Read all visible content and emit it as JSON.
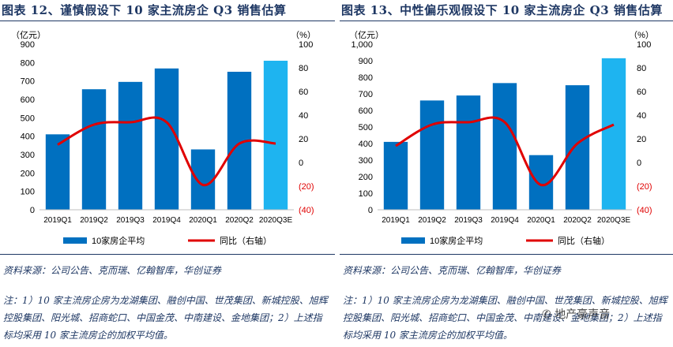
{
  "colors": {
    "bar": "#0070c0",
    "bar_estimate": "#1eb4f0",
    "line": "#e00000",
    "title": "#1f3864",
    "negative_tick": "#e00000"
  },
  "chart_data": [
    {
      "type": "bar",
      "title": "图表 12、谨慎假设下 10 家主流房企 Q3 销售估算",
      "categories": [
        "2019Q1",
        "2019Q2",
        "2019Q3",
        "2019Q4",
        "2020Q1",
        "2020Q2",
        "2020Q3E"
      ],
      "series": [
        {
          "name": "10家房企平均",
          "kind": "bar",
          "axis": "left",
          "values": [
            410,
            655,
            695,
            768,
            328,
            750,
            810
          ]
        },
        {
          "name": "同比（右轴）",
          "kind": "line",
          "axis": "right",
          "values": [
            15,
            32,
            34,
            34,
            -19,
            16,
            16
          ]
        }
      ],
      "ylabel": "（亿元）",
      "y2label": "（%）",
      "ylim": [
        0,
        900
      ],
      "y2lim": [
        -40,
        100
      ],
      "yticks": [
        "0",
        "100",
        "200",
        "300",
        "400",
        "500",
        "600",
        "700",
        "800",
        "900"
      ],
      "y2ticks": [
        "(40)",
        "(20)",
        "0",
        "20",
        "40",
        "60",
        "80",
        "100"
      ],
      "legend": {
        "bar": "10家房企平均",
        "line": "同比（右轴）"
      }
    },
    {
      "type": "bar",
      "title": "图表 13、中性偏乐观假设下 10 家主流房企 Q3 销售估算",
      "categories": [
        "2019Q1",
        "2019Q2",
        "2019Q3",
        "2019Q4",
        "2020Q1",
        "2020Q2",
        "2020Q3E"
      ],
      "series": [
        {
          "name": "10家房企平均",
          "kind": "bar",
          "axis": "left",
          "values": [
            410,
            660,
            690,
            765,
            330,
            752,
            915
          ]
        },
        {
          "name": "同比（右轴）",
          "kind": "line",
          "axis": "right",
          "values": [
            14,
            32,
            34,
            34,
            -19,
            16,
            32
          ]
        }
      ],
      "ylabel": "（亿元）",
      "y2label": "（%）",
      "ylim": [
        0,
        1000
      ],
      "y2lim": [
        -40,
        100
      ],
      "yticks": [
        "0",
        "100",
        "200",
        "300",
        "400",
        "500",
        "600",
        "700",
        "800",
        "900",
        "1,000"
      ],
      "y2ticks": [
        "(40)",
        "(20)",
        "0",
        "20",
        "40",
        "60",
        "80",
        "100"
      ],
      "legend": {
        "bar": "10家房企平均",
        "line": "同比（右轴）"
      }
    }
  ],
  "left": {
    "source": "资料来源：公司公告、克而瑞、亿翰智库，华创证券",
    "note": "注：1）10 家主流房企房为龙湖集团、融创中国、世茂集团、新城控股、旭辉控股集团、阳光城、招商蛇口、中国金茂、中南建设、金地集团；2）上述指标均采用 10 家主流房企的加权平均值。"
  },
  "right": {
    "source": "资料来源：公司公告、克而瑞、亿翰智库，华创证券",
    "note": "注：1）10 家主流房企房为龙湖集团、融创中国、世茂集团、新城控股、旭辉控股集团、阳光城、招商蛇口、中国金茂、中南建设、金地集团；2）上述指标均采用 10 家主流房企的加权平均值。"
  },
  "watermark": "地产豪声音"
}
